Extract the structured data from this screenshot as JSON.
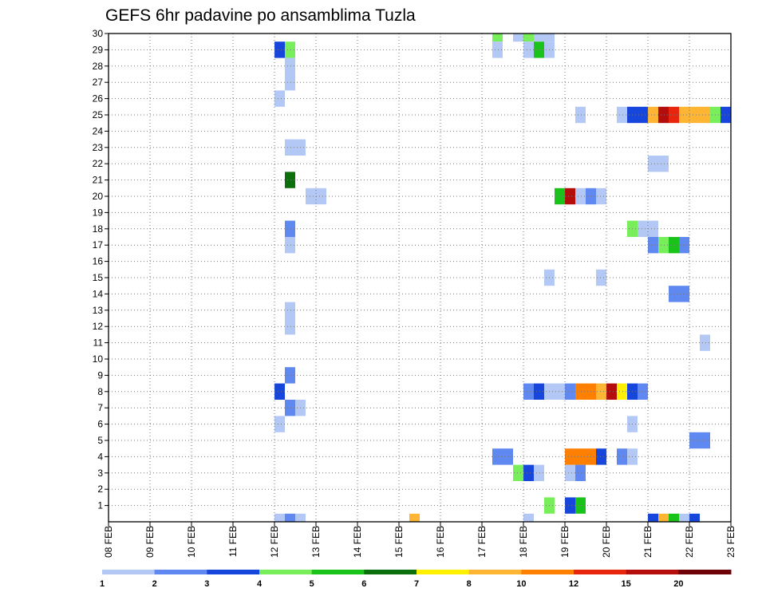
{
  "chart_data": {
    "type": "heatmap",
    "title": "GEFS 6hr padavine po ansamblima Tuzla",
    "x_ticks": [
      "08 FEB",
      "09 FEB",
      "10 FEB",
      "11 FEB",
      "12 FEB",
      "13 FEB",
      "14 FEB",
      "15 FEB",
      "16 FEB",
      "17 FEB",
      "18 FEB",
      "19 FEB",
      "20 FEB",
      "21 FEB",
      "22 FEB",
      "23 FEB"
    ],
    "xlim_days": [
      8,
      23
    ],
    "y_ticks": [
      1,
      2,
      3,
      4,
      5,
      6,
      7,
      8,
      9,
      10,
      11,
      12,
      13,
      14,
      15,
      16,
      17,
      18,
      19,
      20,
      21,
      22,
      23,
      24,
      25,
      26,
      27,
      28,
      29,
      30
    ],
    "ylim": [
      0,
      30
    ],
    "grid": true,
    "colorbar": {
      "labels": [
        "1",
        "2",
        "3",
        "4",
        "5",
        "6",
        "7",
        "8",
        "10",
        "12",
        "15",
        "20"
      ],
      "colors": [
        "#b4c8f5",
        "#5f88f0",
        "#1646dc",
        "#78ee5a",
        "#19c319",
        "#0b700b",
        "#ffef00",
        "#ffb534",
        "#ff7f00",
        "#e8260d",
        "#b50c0c",
        "#6e0007"
      ]
    },
    "cells_note": "each cell: x = start day (6-hour step), y = ensemble member (0 = control), c = color-class index",
    "cells": [
      {
        "x": 12.0,
        "y": 29,
        "c": 2
      },
      {
        "x": 12.25,
        "y": 29,
        "c": 3
      },
      {
        "x": 12.25,
        "y": 28,
        "c": 0
      },
      {
        "x": 12.25,
        "y": 27,
        "c": 0
      },
      {
        "x": 12.0,
        "y": 26,
        "c": 0
      },
      {
        "x": 12.25,
        "y": 23,
        "c": 0
      },
      {
        "x": 12.5,
        "y": 23,
        "c": 0
      },
      {
        "x": 12.25,
        "y": 21,
        "c": 5
      },
      {
        "x": 12.75,
        "y": 20,
        "c": 0
      },
      {
        "x": 13.0,
        "y": 20,
        "c": 0
      },
      {
        "x": 12.25,
        "y": 18,
        "c": 1
      },
      {
        "x": 12.25,
        "y": 17,
        "c": 0
      },
      {
        "x": 12.25,
        "y": 13,
        "c": 0
      },
      {
        "x": 12.25,
        "y": 12,
        "c": 0
      },
      {
        "x": 12.25,
        "y": 9,
        "c": 1
      },
      {
        "x": 12.0,
        "y": 8,
        "c": 2
      },
      {
        "x": 12.25,
        "y": 7,
        "c": 1
      },
      {
        "x": 12.5,
        "y": 7,
        "c": 0
      },
      {
        "x": 12.0,
        "y": 6,
        "c": 0
      },
      {
        "x": 12.0,
        "y": 0,
        "c": 0
      },
      {
        "x": 12.25,
        "y": 0,
        "c": 1
      },
      {
        "x": 12.5,
        "y": 0,
        "c": 0
      },
      {
        "x": 15.25,
        "y": 0,
        "c": 7
      },
      {
        "x": 17.25,
        "y": 30,
        "c": 3
      },
      {
        "x": 17.75,
        "y": 30,
        "c": 0
      },
      {
        "x": 18.0,
        "y": 30,
        "c": 3
      },
      {
        "x": 18.25,
        "y": 30,
        "c": 0
      },
      {
        "x": 18.5,
        "y": 30,
        "c": 0
      },
      {
        "x": 17.25,
        "y": 29,
        "c": 0
      },
      {
        "x": 18.0,
        "y": 29,
        "c": 0
      },
      {
        "x": 18.25,
        "y": 29,
        "c": 4
      },
      {
        "x": 18.5,
        "y": 29,
        "c": 0
      },
      {
        "x": 19.25,
        "y": 25,
        "c": 0
      },
      {
        "x": 20.25,
        "y": 25,
        "c": 0
      },
      {
        "x": 20.5,
        "y": 25,
        "c": 2
      },
      {
        "x": 20.75,
        "y": 25,
        "c": 2
      },
      {
        "x": 21.0,
        "y": 25,
        "c": 7
      },
      {
        "x": 21.25,
        "y": 25,
        "c": 10
      },
      {
        "x": 21.5,
        "y": 25,
        "c": 9
      },
      {
        "x": 21.75,
        "y": 25,
        "c": 7
      },
      {
        "x": 22.0,
        "y": 25,
        "c": 7
      },
      {
        "x": 22.25,
        "y": 25,
        "c": 7
      },
      {
        "x": 22.5,
        "y": 25,
        "c": 3
      },
      {
        "x": 22.75,
        "y": 25,
        "c": 2
      },
      {
        "x": 21.0,
        "y": 22,
        "c": 0
      },
      {
        "x": 21.25,
        "y": 22,
        "c": 0
      },
      {
        "x": 18.75,
        "y": 20,
        "c": 4
      },
      {
        "x": 19.0,
        "y": 20,
        "c": 10
      },
      {
        "x": 19.25,
        "y": 20,
        "c": 0
      },
      {
        "x": 19.5,
        "y": 20,
        "c": 1
      },
      {
        "x": 19.75,
        "y": 20,
        "c": 0
      },
      {
        "x": 20.5,
        "y": 18,
        "c": 3
      },
      {
        "x": 20.75,
        "y": 18,
        "c": 0
      },
      {
        "x": 21.0,
        "y": 18,
        "c": 0
      },
      {
        "x": 21.0,
        "y": 17,
        "c": 1
      },
      {
        "x": 21.25,
        "y": 17,
        "c": 3
      },
      {
        "x": 21.5,
        "y": 17,
        "c": 4
      },
      {
        "x": 21.75,
        "y": 17,
        "c": 1
      },
      {
        "x": 18.5,
        "y": 15,
        "c": 0
      },
      {
        "x": 19.75,
        "y": 15,
        "c": 0
      },
      {
        "x": 21.5,
        "y": 14,
        "c": 1
      },
      {
        "x": 21.75,
        "y": 14,
        "c": 1
      },
      {
        "x": 22.25,
        "y": 11,
        "c": 0
      },
      {
        "x": 18.0,
        "y": 8,
        "c": 1
      },
      {
        "x": 18.25,
        "y": 8,
        "c": 2
      },
      {
        "x": 18.5,
        "y": 8,
        "c": 0
      },
      {
        "x": 18.75,
        "y": 8,
        "c": 0
      },
      {
        "x": 19.0,
        "y": 8,
        "c": 1
      },
      {
        "x": 19.25,
        "y": 8,
        "c": 8
      },
      {
        "x": 19.5,
        "y": 8,
        "c": 8
      },
      {
        "x": 19.75,
        "y": 8,
        "c": 7
      },
      {
        "x": 20.0,
        "y": 8,
        "c": 10
      },
      {
        "x": 20.25,
        "y": 8,
        "c": 6
      },
      {
        "x": 20.5,
        "y": 8,
        "c": 2
      },
      {
        "x": 20.75,
        "y": 8,
        "c": 1
      },
      {
        "x": 20.5,
        "y": 6,
        "c": 0
      },
      {
        "x": 22.0,
        "y": 5,
        "c": 1
      },
      {
        "x": 22.25,
        "y": 5,
        "c": 1
      },
      {
        "x": 17.25,
        "y": 4,
        "c": 1
      },
      {
        "x": 17.5,
        "y": 4,
        "c": 1
      },
      {
        "x": 19.0,
        "y": 4,
        "c": 8
      },
      {
        "x": 19.25,
        "y": 4,
        "c": 8
      },
      {
        "x": 19.5,
        "y": 4,
        "c": 8
      },
      {
        "x": 19.75,
        "y": 4,
        "c": 2
      },
      {
        "x": 20.25,
        "y": 4,
        "c": 1
      },
      {
        "x": 20.5,
        "y": 4,
        "c": 0
      },
      {
        "x": 17.75,
        "y": 3,
        "c": 3
      },
      {
        "x": 18.0,
        "y": 3,
        "c": 2
      },
      {
        "x": 18.25,
        "y": 3,
        "c": 0
      },
      {
        "x": 19.0,
        "y": 3,
        "c": 0
      },
      {
        "x": 19.25,
        "y": 3,
        "c": 1
      },
      {
        "x": 18.5,
        "y": 1,
        "c": 3
      },
      {
        "x": 19.0,
        "y": 1,
        "c": 2
      },
      {
        "x": 19.25,
        "y": 1,
        "c": 4
      },
      {
        "x": 18.0,
        "y": 0,
        "c": 0
      },
      {
        "x": 21.0,
        "y": 0,
        "c": 2
      },
      {
        "x": 21.25,
        "y": 0,
        "c": 7
      },
      {
        "x": 21.5,
        "y": 0,
        "c": 4
      },
      {
        "x": 21.75,
        "y": 0,
        "c": 0
      },
      {
        "x": 22.0,
        "y": 0,
        "c": 2
      }
    ]
  }
}
